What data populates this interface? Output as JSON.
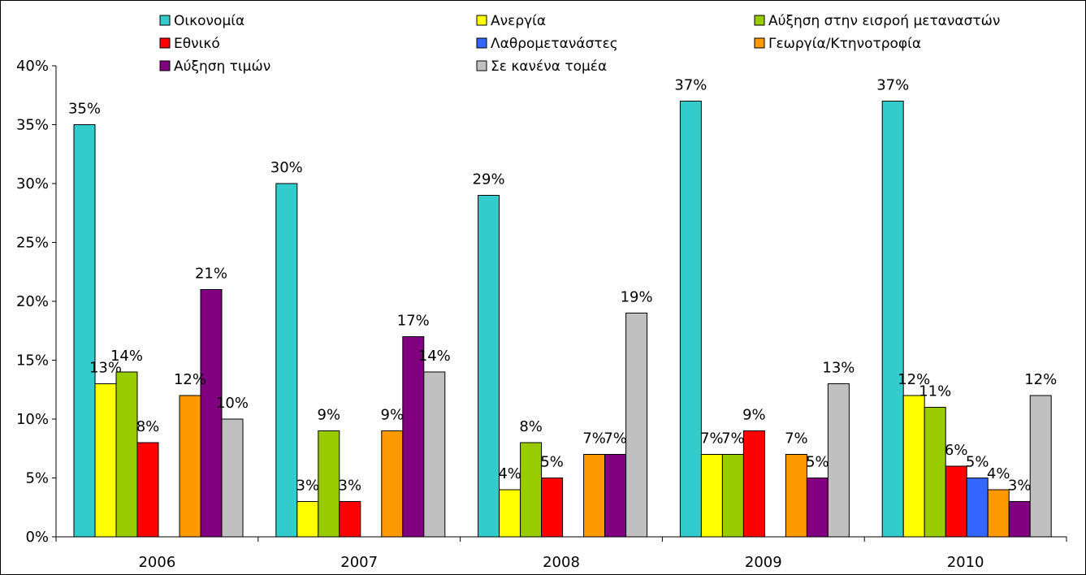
{
  "chart_data": {
    "type": "bar",
    "categories": [
      "2006",
      "2007",
      "2008",
      "2009",
      "2010"
    ],
    "ylim": [
      0,
      40
    ],
    "yticks": [
      "0%",
      "5%",
      "10%",
      "15%",
      "20%",
      "25%",
      "30%",
      "35%",
      "40%"
    ],
    "grid": false,
    "legend_position": "top",
    "series": [
      {
        "name": "Οικονομία",
        "color": "#33CCCC",
        "values": [
          35,
          30,
          29,
          37,
          37
        ]
      },
      {
        "name": "Ανεργία",
        "color": "#FFFF00",
        "values": [
          13,
          3,
          4,
          7,
          12
        ]
      },
      {
        "name": "Αύξηση στην εισροή μεταναστών",
        "color": "#99CC00",
        "values": [
          14,
          9,
          8,
          7,
          11
        ]
      },
      {
        "name": "Εθνικό",
        "color": "#FF0000",
        "values": [
          8,
          3,
          5,
          9,
          6
        ]
      },
      {
        "name": "Λαθρομετανάστες",
        "color": "#3366FF",
        "values": [
          null,
          null,
          null,
          null,
          5
        ]
      },
      {
        "name": "Γεωργία/Κτηνοτροφία",
        "color": "#FF9900",
        "values": [
          12,
          9,
          7,
          7,
          4
        ]
      },
      {
        "name": "Αύξηση τιμών",
        "color": "#800080",
        "values": [
          21,
          17,
          7,
          5,
          3
        ]
      },
      {
        "name": "Σε κανένα τομέα",
        "color": "#C0C0C0",
        "values": [
          10,
          14,
          19,
          13,
          12
        ]
      }
    ],
    "label_suffix": "%"
  }
}
